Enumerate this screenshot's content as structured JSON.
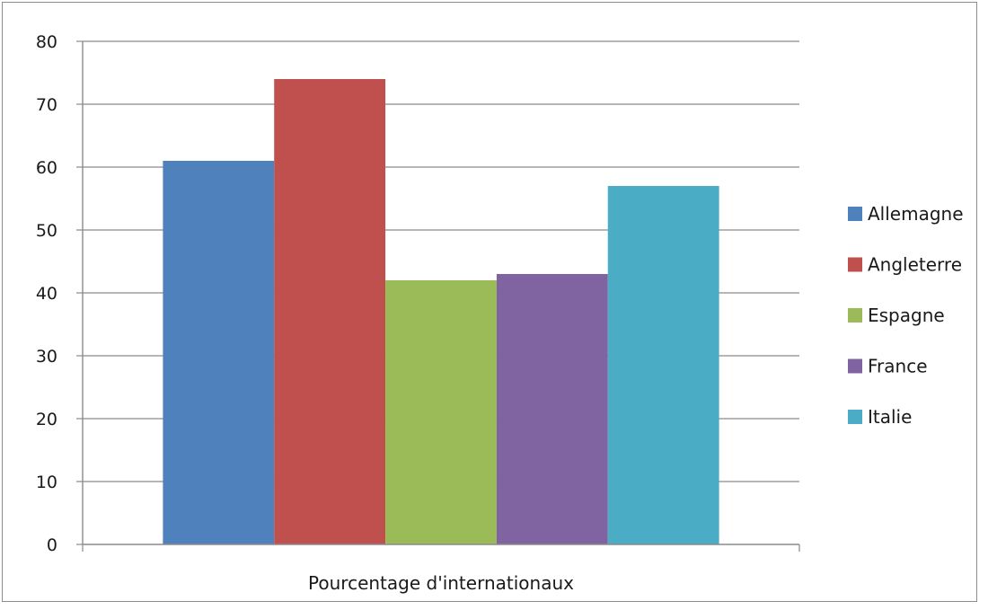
{
  "chart_data": {
    "type": "bar",
    "categories": [
      "Pourcentage d'internationaux"
    ],
    "series": [
      {
        "name": "Allemagne",
        "values": [
          61
        ],
        "color": "#4f81bd"
      },
      {
        "name": "Angleterre",
        "values": [
          74
        ],
        "color": "#c0504d"
      },
      {
        "name": "Espagne",
        "values": [
          42
        ],
        "color": "#9bbb59"
      },
      {
        "name": "France",
        "values": [
          43
        ],
        "color": "#8064a2"
      },
      {
        "name": "Italie",
        "values": [
          57
        ],
        "color": "#4bacc6"
      }
    ],
    "title": "",
    "xlabel": "",
    "ylabel": "",
    "ylim": [
      0,
      80
    ],
    "yticks": [
      0,
      10,
      20,
      30,
      40,
      50,
      60,
      70,
      80
    ],
    "grid": true,
    "legend_position": "right"
  }
}
